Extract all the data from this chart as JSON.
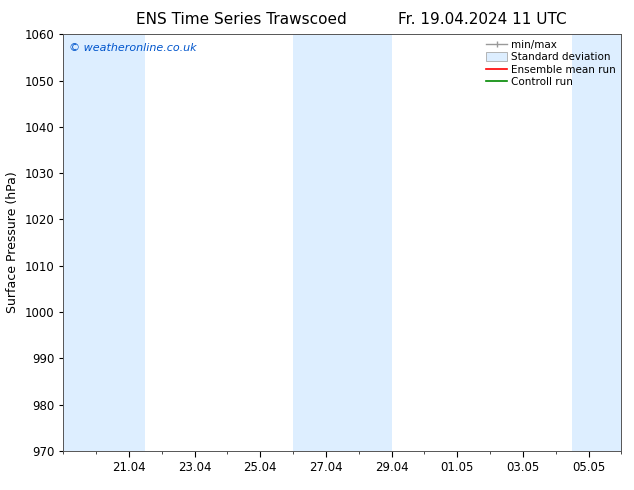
{
  "title_left": "ENS Time Series Trawscoed",
  "title_right": "Fr. 19.04.2024 11 UTC",
  "ylabel": "Surface Pressure (hPa)",
  "ylim": [
    970,
    1060
  ],
  "yticks": [
    970,
    980,
    990,
    1000,
    1010,
    1020,
    1030,
    1040,
    1050,
    1060
  ],
  "x_tick_labels": [
    "21.04",
    "23.04",
    "25.04",
    "27.04",
    "29.04",
    "01.05",
    "03.05",
    "05.05"
  ],
  "x_tick_positions": [
    2,
    4,
    6,
    8,
    10,
    12,
    14,
    16
  ],
  "xlim": [
    0,
    17
  ],
  "background_color": "#ffffff",
  "plot_bg_color": "#ffffff",
  "watermark": "© weatheronline.co.uk",
  "watermark_color": "#0055cc",
  "shaded_regions": [
    {
      "x_start": 0.0,
      "x_end": 2.5,
      "color": "#ddeeff"
    },
    {
      "x_start": 7.0,
      "x_end": 10.0,
      "color": "#ddeeff"
    },
    {
      "x_start": 15.5,
      "x_end": 17.0,
      "color": "#ddeeff"
    }
  ],
  "legend_labels": [
    "min/max",
    "Standard deviation",
    "Ensemble mean run",
    "Controll run"
  ],
  "minmax_color": "#999999",
  "std_facecolor": "#ddeeff",
  "std_edgecolor": "#aaaaaa",
  "ens_color": "#ff0000",
  "ctrl_color": "#008800",
  "title_fontsize": 11,
  "tick_label_fontsize": 8.5,
  "ylabel_fontsize": 9,
  "legend_fontsize": 7.5
}
